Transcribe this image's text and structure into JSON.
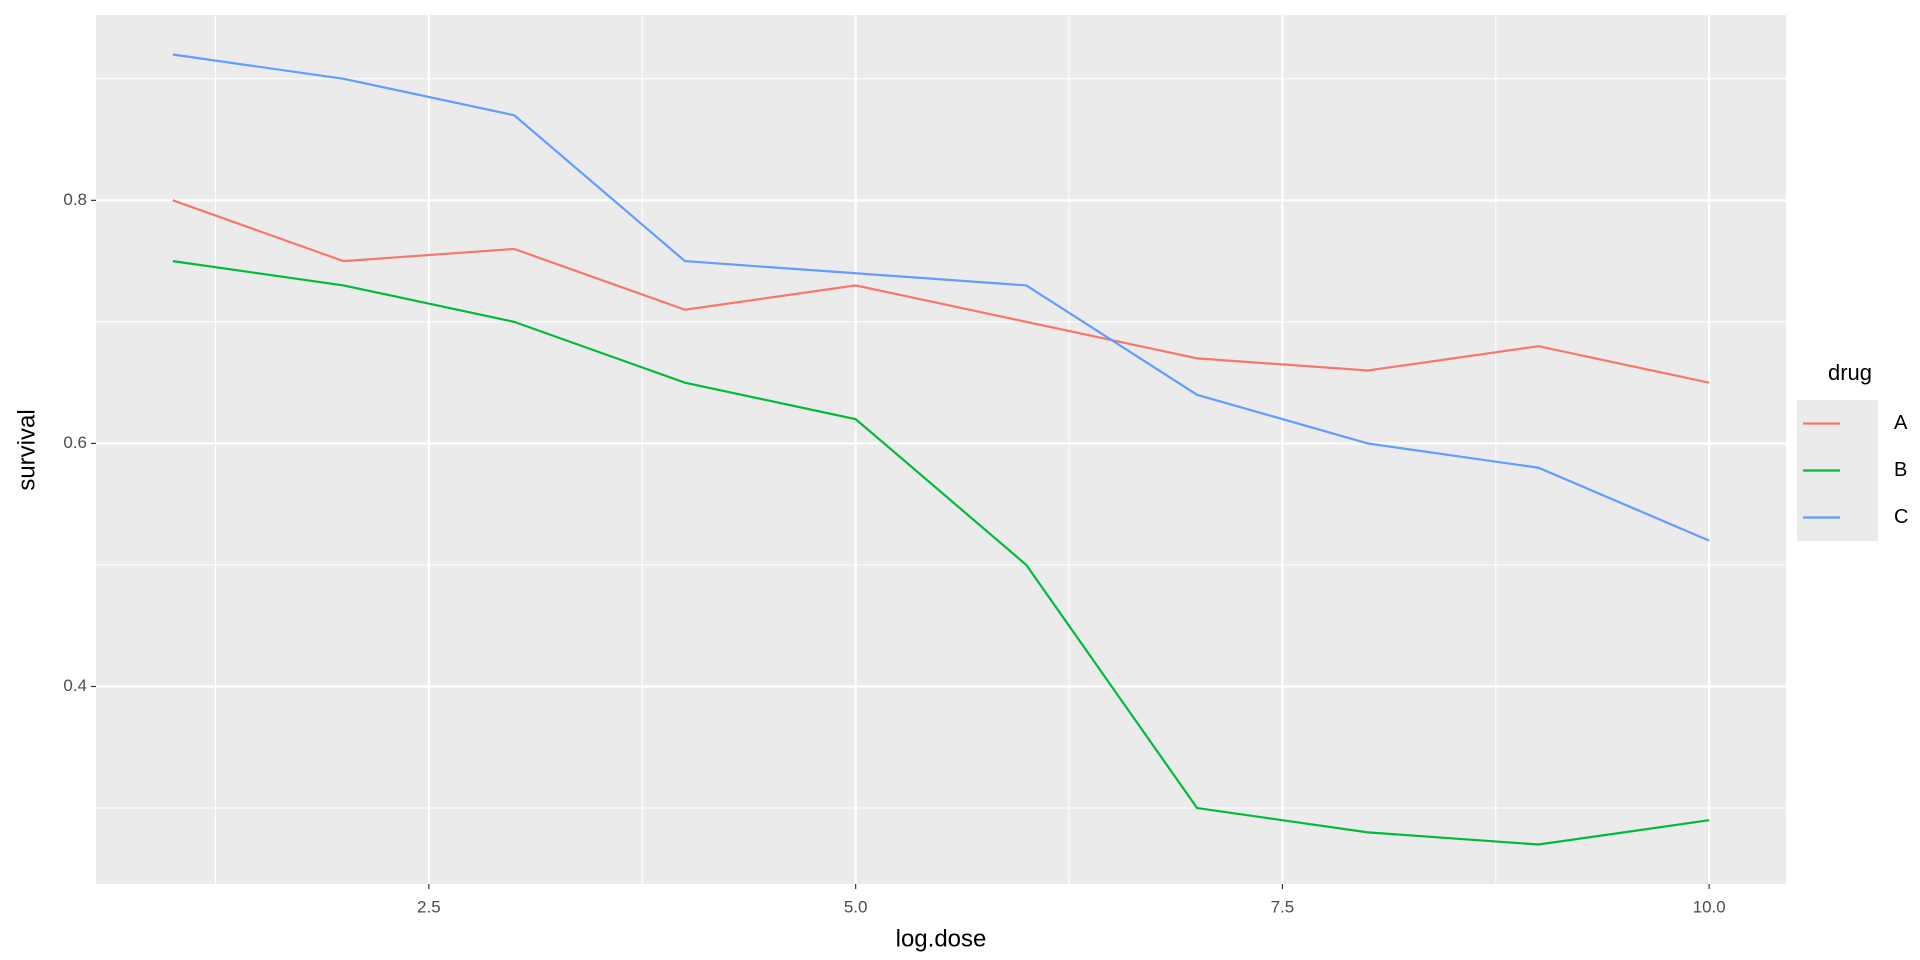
{
  "chart_data": {
    "type": "line",
    "x_label": "log.dose",
    "y_label": "survival",
    "legend_title": "drug",
    "x": [
      1,
      2,
      3,
      4,
      5,
      6,
      7,
      8,
      9,
      10
    ],
    "series": [
      {
        "name": "A",
        "color": "#F8766D",
        "values": [
          0.8,
          0.75,
          0.76,
          0.71,
          0.73,
          0.7,
          0.67,
          0.66,
          0.68,
          0.65
        ]
      },
      {
        "name": "B",
        "color": "#00BA38",
        "values": [
          0.75,
          0.73,
          0.7,
          0.65,
          0.62,
          0.5,
          0.3,
          0.28,
          0.27,
          0.29
        ]
      },
      {
        "name": "C",
        "color": "#619CFF",
        "values": [
          0.92,
          0.9,
          0.87,
          0.75,
          0.74,
          0.73,
          0.64,
          0.6,
          0.58,
          0.52
        ]
      }
    ],
    "xlim": [
      0.55,
      10.45
    ],
    "ylim": [
      0.2375,
      0.9525
    ],
    "xticks": [
      2.5,
      {
        "value": 5,
        "label": "5.0"
      },
      7.5,
      {
        "value": 10,
        "label": "10.0"
      }
    ],
    "yticks": [
      0.4,
      0.6,
      0.8
    ],
    "grid": true,
    "legend": "right"
  }
}
